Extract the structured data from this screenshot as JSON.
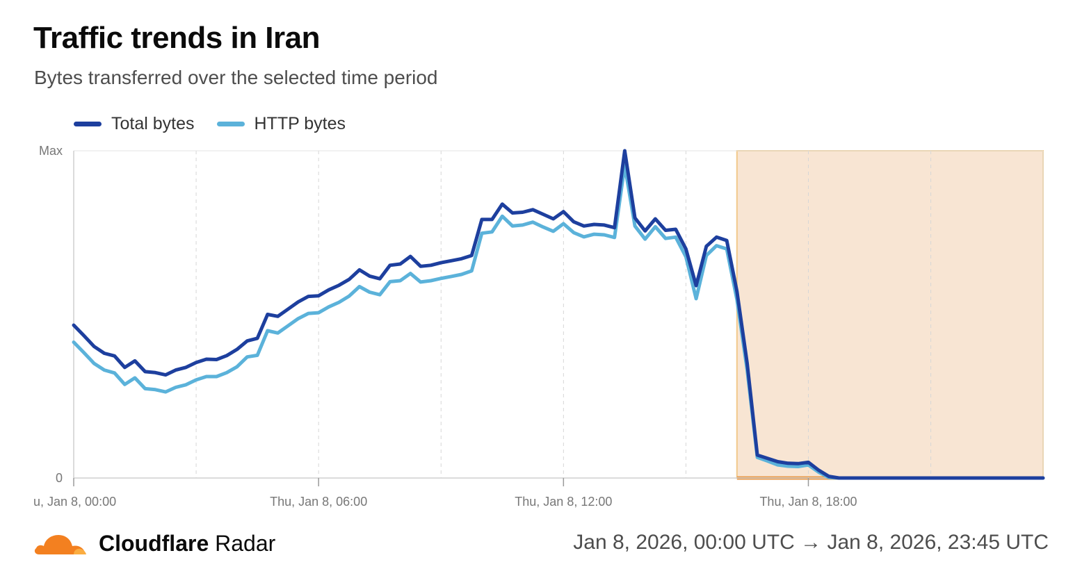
{
  "header": {
    "title": "Traffic trends in Iran",
    "subtitle": "Bytes transferred over the selected time period"
  },
  "footer": {
    "brand_bold": "Cloudflare",
    "brand_rest": "Radar",
    "range": "Jan 8, 2026, 00:00 UTC → Jan 8, 2026, 23:45 UTC",
    "logo_icon": "cloud-icon"
  },
  "colors": {
    "total": "#1d3f9e",
    "http": "#5bb2da",
    "outage_fill": "#f8e5d3",
    "outage_border": "#f2c98a",
    "outage_baseline": "#e89a4a",
    "logo": "#f38020"
  },
  "chart_data": {
    "type": "line",
    "title": "Traffic trends in Iran",
    "subtitle": "Bytes transferred over the selected time period",
    "ytick_labels": [
      "0",
      "Max"
    ],
    "ylim": [
      0,
      1
    ],
    "x_tick_labels": [
      "u, Jan 8, 00:00",
      "Thu, Jan 8, 06:00",
      "Thu, Jan 8, 12:00",
      "Thu, Jan 8, 18:00"
    ],
    "x_start": "2026-01-08T00:00Z",
    "x_end": "2026-01-08T23:45Z",
    "grid": "vertical dashed",
    "legend": "top-left",
    "highlight_region": {
      "from": "2026-01-08T16:15Z",
      "to": "2026-01-08T23:45Z"
    },
    "x": [
      "00:00",
      "00:15",
      "00:30",
      "00:45",
      "01:00",
      "01:15",
      "01:30",
      "01:45",
      "02:00",
      "02:15",
      "02:30",
      "02:45",
      "03:00",
      "03:15",
      "03:30",
      "03:45",
      "04:00",
      "04:15",
      "04:30",
      "04:45",
      "05:00",
      "05:15",
      "05:30",
      "05:45",
      "06:00",
      "06:15",
      "06:30",
      "06:45",
      "07:00",
      "07:15",
      "07:30",
      "07:45",
      "08:00",
      "08:15",
      "08:30",
      "08:45",
      "09:00",
      "09:15",
      "09:30",
      "09:45",
      "10:00",
      "10:15",
      "10:30",
      "10:45",
      "11:00",
      "11:15",
      "11:30",
      "11:45",
      "12:00",
      "12:15",
      "12:30",
      "12:45",
      "13:00",
      "13:15",
      "13:30",
      "13:45",
      "14:00",
      "14:15",
      "14:30",
      "14:45",
      "15:00",
      "15:15",
      "15:30",
      "15:45",
      "16:00",
      "16:15",
      "16:30",
      "16:45",
      "17:00",
      "17:15",
      "17:30",
      "17:45",
      "18:00",
      "18:15",
      "18:30",
      "18:45",
      "19:00",
      "19:15",
      "19:30",
      "19:45",
      "20:00",
      "20:15",
      "20:30",
      "20:45",
      "21:00",
      "21:15",
      "21:30",
      "21:45",
      "22:00",
      "22:15",
      "22:30",
      "22:45",
      "23:00",
      "23:15",
      "23:30",
      "23:45"
    ],
    "series": [
      {
        "name": "Total bytes",
        "values": [
          0.467,
          0.435,
          0.402,
          0.381,
          0.373,
          0.338,
          0.358,
          0.325,
          0.322,
          0.315,
          0.33,
          0.338,
          0.353,
          0.363,
          0.362,
          0.374,
          0.393,
          0.419,
          0.427,
          0.5,
          0.494,
          0.516,
          0.538,
          0.555,
          0.557,
          0.575,
          0.589,
          0.607,
          0.636,
          0.617,
          0.609,
          0.65,
          0.654,
          0.677,
          0.647,
          0.65,
          0.658,
          0.664,
          0.67,
          0.68,
          0.79,
          0.79,
          0.837,
          0.81,
          0.812,
          0.82,
          0.806,
          0.792,
          0.814,
          0.783,
          0.77,
          0.775,
          0.773,
          0.765,
          1.0,
          0.795,
          0.755,
          0.792,
          0.757,
          0.76,
          0.7,
          0.588,
          0.708,
          0.736,
          0.726,
          0.57,
          0.35,
          0.07,
          0.06,
          0.05,
          0.045,
          0.044,
          0.048,
          0.024,
          0.005,
          0.0,
          0.0,
          0.0,
          0.0,
          0.0,
          0.0,
          0.0,
          0.0,
          0.0,
          0.0,
          0.0,
          0.0,
          0.0,
          0.0,
          0.0,
          0.0,
          0.0,
          0.0,
          0.0,
          0.0,
          0.0
        ]
      },
      {
        "name": "HTTP bytes",
        "values": [
          0.415,
          0.383,
          0.35,
          0.33,
          0.321,
          0.286,
          0.306,
          0.273,
          0.27,
          0.263,
          0.277,
          0.285,
          0.3,
          0.31,
          0.31,
          0.322,
          0.34,
          0.37,
          0.375,
          0.45,
          0.443,
          0.465,
          0.487,
          0.503,
          0.505,
          0.523,
          0.537,
          0.556,
          0.585,
          0.568,
          0.56,
          0.6,
          0.603,
          0.625,
          0.599,
          0.603,
          0.61,
          0.616,
          0.622,
          0.633,
          0.748,
          0.752,
          0.8,
          0.77,
          0.773,
          0.782,
          0.767,
          0.754,
          0.777,
          0.75,
          0.737,
          0.745,
          0.743,
          0.735,
          0.955,
          0.77,
          0.73,
          0.768,
          0.732,
          0.736,
          0.676,
          0.548,
          0.68,
          0.71,
          0.7,
          0.545,
          0.33,
          0.063,
          0.052,
          0.04,
          0.036,
          0.035,
          0.04,
          0.018,
          0.002,
          0.0,
          0.0,
          0.0,
          0.0,
          0.0,
          0.0,
          0.0,
          0.0,
          0.0,
          0.0,
          0.0,
          0.0,
          0.0,
          0.0,
          0.0,
          0.0,
          0.0,
          0.0,
          0.0,
          0.0,
          0.0
        ]
      }
    ]
  }
}
